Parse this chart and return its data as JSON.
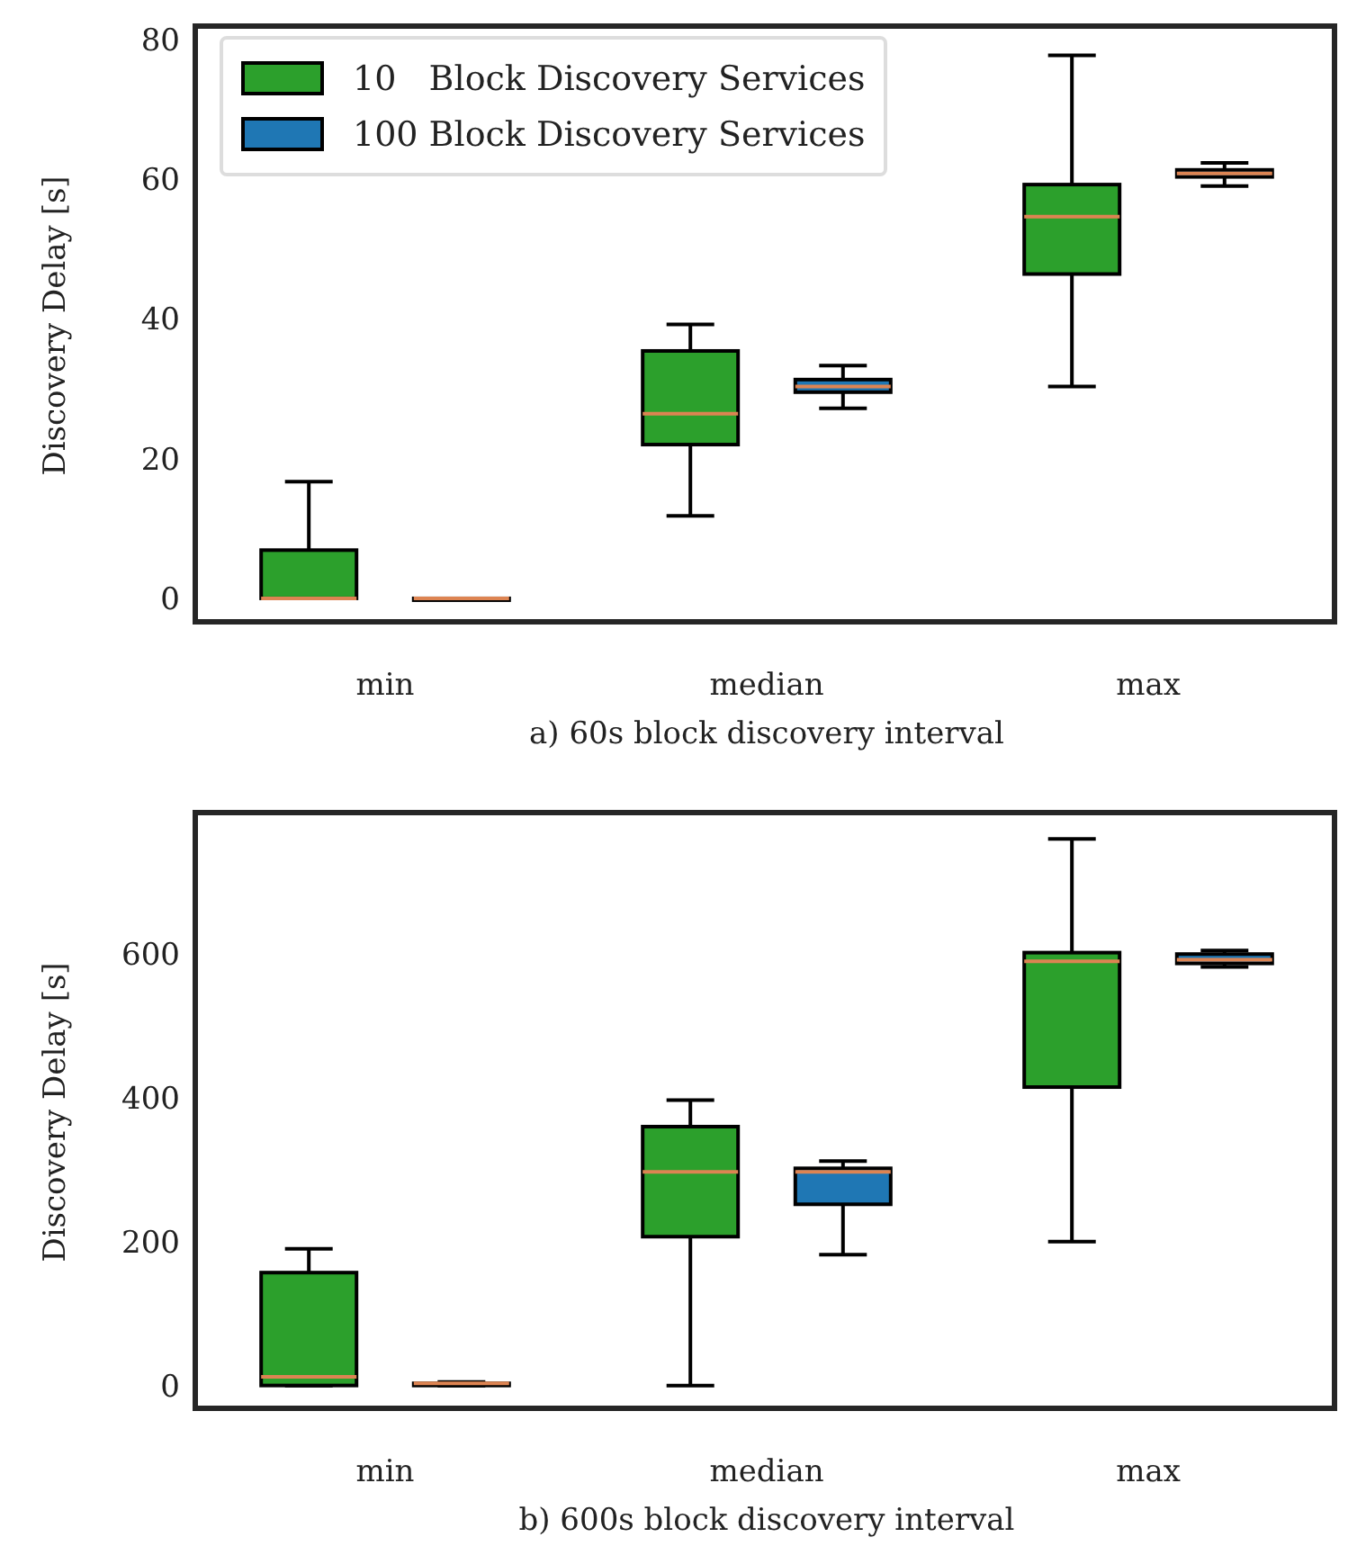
{
  "chart_data": [
    {
      "type": "box",
      "xlabel": "a) 60s block discovery interval",
      "ylabel": "Discovery Delay [s]",
      "categories": [
        "min",
        "median",
        "max"
      ],
      "ylim": [
        -4,
        82
      ],
      "yticks": [
        0,
        20,
        40,
        60,
        80
      ],
      "grid": false,
      "legend": "top left",
      "series": [
        {
          "name": "10   Block Discovery Services",
          "color": "#2ca02c",
          "boxes": [
            {
              "low": 0,
              "q1": 0,
              "median": 0,
              "q3": 6.9,
              "high": 16.7
            },
            {
              "low": 11.8,
              "q1": 22,
              "median": 26.4,
              "q3": 35.4,
              "high": 39.2
            },
            {
              "low": 30.3,
              "q1": 46.4,
              "median": 54.6,
              "q3": 59.2,
              "high": 77.7
            }
          ]
        },
        {
          "name": "100 Block Discovery Services",
          "color": "#1f77b4",
          "boxes": [
            {
              "low": 0,
              "q1": 0,
              "median": 0,
              "q3": 0,
              "high": 0
            },
            {
              "low": 27.2,
              "q1": 29.5,
              "median": 30.3,
              "q3": 31.3,
              "high": 33.3
            },
            {
              "low": 59,
              "q1": 60.3,
              "median": 60.8,
              "q3": 61.3,
              "high": 62.3
            }
          ]
        }
      ]
    },
    {
      "type": "box",
      "xlabel": "b) 600s block discovery interval",
      "ylabel": "Discovery Delay [s]",
      "categories": [
        "min",
        "median",
        "max"
      ],
      "ylim": [
        -38,
        798
      ],
      "yticks": [
        0,
        200,
        400,
        600
      ],
      "grid": false,
      "series": [
        {
          "color": "#2ca02c",
          "boxes": [
            {
              "low": 0,
              "q1": 0,
              "median": 12,
              "q3": 157,
              "high": 190
            },
            {
              "low": 0,
              "q1": 207,
              "median": 297,
              "q3": 360,
              "high": 397
            },
            {
              "low": 200,
              "q1": 415,
              "median": 590,
              "q3": 602,
              "high": 760
            }
          ]
        },
        {
          "color": "#1f77b4",
          "boxes": [
            {
              "low": 0,
              "q1": 0,
              "median": 3,
              "q3": 3,
              "high": 5
            },
            {
              "low": 182,
              "q1": 252,
              "median": 297,
              "q3": 302,
              "high": 312
            },
            {
              "low": 582,
              "q1": 587,
              "median": 592,
              "q3": 600,
              "high": 605
            }
          ]
        }
      ]
    }
  ]
}
